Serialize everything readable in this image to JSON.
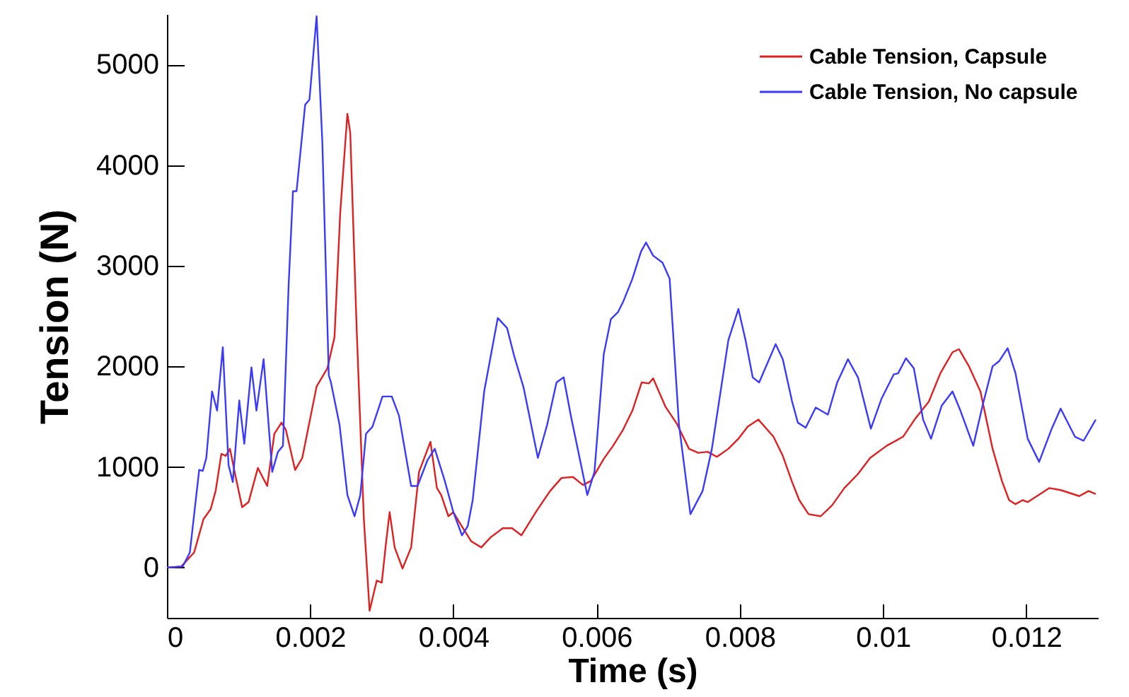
{
  "chart_data": {
    "type": "line",
    "xlabel": "Time (s)",
    "ylabel": "Tension (N)",
    "xlim": [
      0,
      0.013
    ],
    "ylim": [
      -500,
      5500
    ],
    "xticks": [
      0,
      0.002,
      0.004,
      0.006,
      0.008,
      0.01,
      0.012
    ],
    "yticks": [
      0,
      1000,
      2000,
      3000,
      4000,
      5000
    ],
    "legend": "top right",
    "series": [
      {
        "name": "Cable Tension, Capsule",
        "color": "#e02020",
        "x": [
          0,
          0.0002,
          0.00038,
          0.00051,
          0.00061,
          0.00068,
          0.00076,
          0.00082,
          0.00088,
          0.00096,
          0.00105,
          0.00114,
          0.00127,
          0.0014,
          0.0015,
          0.0016,
          0.00166,
          0.00179,
          0.00189,
          0.00209,
          0.00224,
          0.00234,
          0.00242,
          0.00252,
          0.00256,
          0.00265,
          0.00275,
          0.00283,
          0.00293,
          0.003,
          0.00306,
          0.00311,
          0.00318,
          0.00329,
          0.00341,
          0.00352,
          0.00368,
          0.00377,
          0.00383,
          0.00393,
          0.004,
          0.0041,
          0.00425,
          0.00439,
          0.00452,
          0.00469,
          0.00482,
          0.00495,
          0.00515,
          0.00535,
          0.00551,
          0.00567,
          0.00581,
          0.00592,
          0.0061,
          0.00623,
          0.00637,
          0.0065,
          0.00663,
          0.00673,
          0.00679,
          0.00696,
          0.00712,
          0.00729,
          0.00742,
          0.00755,
          0.00768,
          0.00784,
          0.00798,
          0.00811,
          0.00826,
          0.00847,
          0.0086,
          0.00873,
          0.00883,
          0.00896,
          0.00913,
          0.00929,
          0.00946,
          0.00965,
          0.00982,
          0.01005,
          0.01028,
          0.01044,
          0.01064,
          0.0108,
          0.01097,
          0.01106,
          0.0112,
          0.01136,
          0.01153,
          0.01166,
          0.01176,
          0.01185,
          0.01195,
          0.01202,
          0.01215,
          0.01232,
          0.01248,
          0.01274,
          0.01287,
          0.01297
        ],
        "values": [
          0,
          10,
          150,
          480,
          580,
          760,
          1130,
          1110,
          1180,
          900,
          600,
          650,
          990,
          810,
          1330,
          1440,
          1370,
          970,
          1090,
          1800,
          1980,
          2290,
          3530,
          4510,
          4320,
          2360,
          480,
          -430,
          -130,
          -150,
          250,
          550,
          200,
          -10,
          200,
          950,
          1250,
          790,
          720,
          510,
          550,
          430,
          260,
          200,
          300,
          390,
          390,
          320,
          550,
          760,
          890,
          900,
          820,
          860,
          1080,
          1210,
          1370,
          1560,
          1840,
          1830,
          1880,
          1600,
          1430,
          1180,
          1140,
          1150,
          1100,
          1180,
          1280,
          1400,
          1470,
          1300,
          1110,
          850,
          670,
          530,
          510,
          620,
          790,
          930,
          1090,
          1210,
          1300,
          1470,
          1650,
          1930,
          2140,
          2170,
          2000,
          1750,
          1180,
          860,
          670,
          630,
          670,
          650,
          710,
          790,
          770,
          710,
          760,
          730
        ]
      },
      {
        "name": "Cable Tension, No capsule",
        "color": "#3a3aff",
        "x": [
          0,
          0.00022,
          0.00032,
          0.00045,
          0.0005,
          0.00055,
          0.00063,
          0.0007,
          0.00078,
          0.00086,
          0.00092,
          0.00101,
          0.00108,
          0.00118,
          0.00125,
          0.00135,
          0.00147,
          0.00155,
          0.00162,
          0.0017,
          0.00176,
          0.00181,
          0.00193,
          0.00199,
          0.00209,
          0.00217,
          0.00226,
          0.00229,
          0.00241,
          0.00252,
          0.00262,
          0.0027,
          0.00278,
          0.00287,
          0.00301,
          0.00314,
          0.00324,
          0.00341,
          0.0035,
          0.00364,
          0.00374,
          0.00388,
          0.004,
          0.00412,
          0.0042,
          0.00427,
          0.00443,
          0.00462,
          0.00475,
          0.00485,
          0.00498,
          0.00518,
          0.00531,
          0.00544,
          0.00554,
          0.00564,
          0.00587,
          0.00597,
          0.0061,
          0.0062,
          0.0063,
          0.00637,
          0.0065,
          0.00662,
          0.00669,
          0.00679,
          0.00692,
          0.00702,
          0.00715,
          0.00731,
          0.00748,
          0.00761,
          0.00784,
          0.00798,
          0.00808,
          0.00818,
          0.00827,
          0.0085,
          0.0086,
          0.00873,
          0.00881,
          0.00892,
          0.00906,
          0.00923,
          0.00936,
          0.00951,
          0.00965,
          0.00983,
          0.00998,
          0.01015,
          0.01021,
          0.01032,
          0.01043,
          0.01056,
          0.01067,
          0.01082,
          0.01097,
          0.01108,
          0.01126,
          0.01139,
          0.01153,
          0.01162,
          0.01174,
          0.01185,
          0.01202,
          0.01218,
          0.01235,
          0.01248,
          0.01268,
          0.0128,
          0.01297
        ],
        "values": [
          0,
          10,
          150,
          970,
          960,
          1090,
          1750,
          1560,
          2190,
          1020,
          850,
          1660,
          1230,
          1990,
          1560,
          2070,
          950,
          1150,
          1210,
          2820,
          3740,
          3740,
          4600,
          4650,
          5480,
          4230,
          1910,
          1840,
          1420,
          720,
          510,
          720,
          1330,
          1400,
          1700,
          1700,
          1510,
          810,
          810,
          1070,
          1180,
          860,
          550,
          320,
          410,
          670,
          1750,
          2480,
          2380,
          2100,
          1790,
          1090,
          1420,
          1840,
          1890,
          1510,
          720,
          950,
          2120,
          2470,
          2540,
          2640,
          2870,
          3140,
          3230,
          3100,
          3030,
          2870,
          1420,
          530,
          760,
          1180,
          2260,
          2570,
          2260,
          1890,
          1840,
          2220,
          2070,
          1650,
          1440,
          1390,
          1590,
          1520,
          1840,
          2070,
          1890,
          1380,
          1680,
          1920,
          1930,
          2080,
          1980,
          1470,
          1280,
          1610,
          1750,
          1560,
          1210,
          1610,
          2000,
          2050,
          2180,
          1930,
          1280,
          1050,
          1370,
          1580,
          1300,
          1260,
          1470
        ]
      }
    ]
  }
}
